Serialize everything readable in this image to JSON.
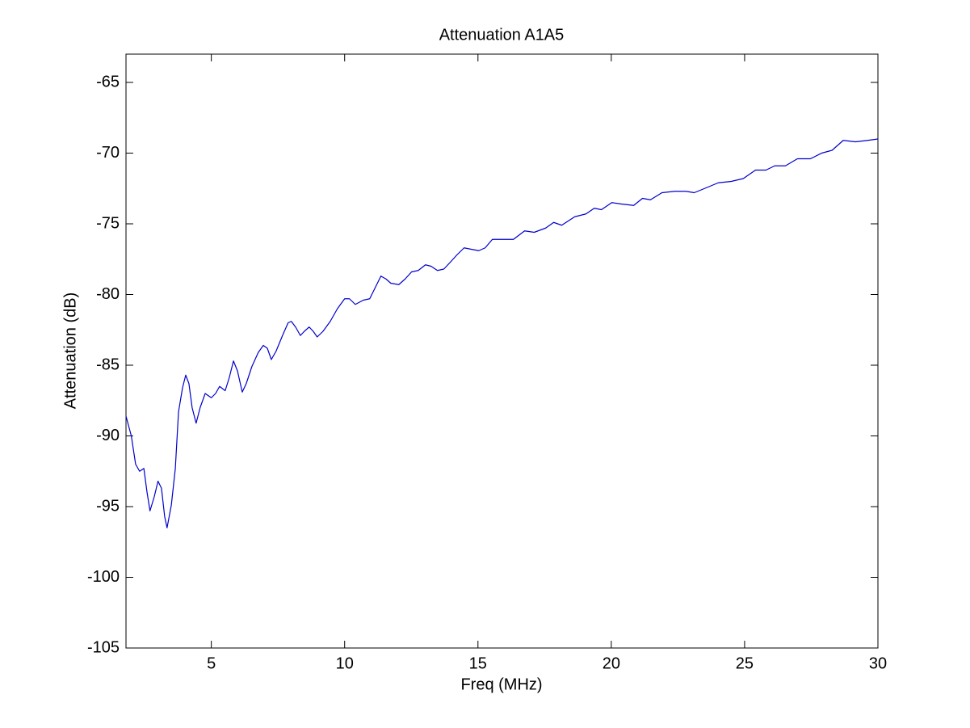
{
  "chart_data": {
    "type": "line",
    "title": "Attenuation A1A5",
    "xlabel": "Freq (MHz)",
    "ylabel": "Attenuation (dB)",
    "x": [
      1.8,
      2.0,
      2.16,
      2.31,
      2.47,
      2.59,
      2.7,
      2.86,
      3.0,
      3.13,
      3.25,
      3.34,
      3.5,
      3.65,
      3.77,
      3.92,
      4.04,
      4.16,
      4.28,
      4.43,
      4.58,
      4.77,
      5.0,
      5.16,
      5.31,
      5.52,
      5.67,
      5.83,
      5.98,
      6.16,
      6.31,
      6.52,
      6.76,
      6.95,
      7.1,
      7.25,
      7.43,
      7.67,
      7.88,
      8.0,
      8.16,
      8.34,
      8.49,
      8.67,
      8.82,
      8.97,
      9.19,
      9.46,
      9.73,
      10.0,
      10.18,
      10.4,
      10.7,
      10.94,
      11.15,
      11.36,
      11.55,
      11.73,
      12.03,
      12.27,
      12.51,
      12.76,
      13.03,
      13.24,
      13.48,
      13.72,
      13.97,
      14.21,
      14.48,
      14.75,
      15.03,
      15.27,
      15.54,
      15.84,
      16.33,
      16.75,
      17.11,
      17.54,
      17.84,
      18.14,
      18.63,
      19.05,
      19.36,
      19.63,
      20.02,
      20.38,
      20.84,
      21.17,
      21.47,
      21.9,
      22.38,
      22.8,
      23.11,
      23.5,
      24.01,
      24.5,
      24.95,
      25.41,
      25.8,
      26.13,
      26.53,
      26.98,
      27.47,
      27.89,
      28.28,
      28.7,
      29.16,
      29.61,
      30.0
    ],
    "series": [
      {
        "name": "Attenuation",
        "color": "#0000cc",
        "values": [
          -88.6,
          -90.0,
          -92.0,
          -92.5,
          -92.3,
          -94.0,
          -95.3,
          -94.3,
          -93.2,
          -93.7,
          -95.7,
          -96.5,
          -94.9,
          -92.3,
          -88.3,
          -86.6,
          -85.7,
          -86.3,
          -88.0,
          -89.1,
          -88.0,
          -87.0,
          -87.3,
          -87.0,
          -86.5,
          -86.8,
          -85.9,
          -84.7,
          -85.4,
          -86.9,
          -86.3,
          -85.1,
          -84.1,
          -83.6,
          -83.8,
          -84.6,
          -84.0,
          -82.9,
          -82.0,
          -81.9,
          -82.3,
          -82.9,
          -82.6,
          -82.3,
          -82.6,
          -83.0,
          -82.6,
          -81.9,
          -81.0,
          -80.3,
          -80.3,
          -80.7,
          -80.4,
          -80.3,
          -79.5,
          -78.7,
          -78.9,
          -79.2,
          -79.3,
          -78.9,
          -78.4,
          -78.3,
          -77.9,
          -78.0,
          -78.3,
          -78.2,
          -77.7,
          -77.2,
          -76.7,
          -76.8,
          -76.9,
          -76.7,
          -76.1,
          -76.1,
          -76.1,
          -75.5,
          -75.6,
          -75.3,
          -74.9,
          -75.1,
          -74.5,
          -74.3,
          -73.9,
          -74.0,
          -73.5,
          -73.6,
          -73.7,
          -73.2,
          -73.3,
          -72.8,
          -72.7,
          -72.7,
          -72.8,
          -72.5,
          -72.1,
          -72.0,
          -71.8,
          -71.2,
          -71.2,
          -70.9,
          -70.9,
          -70.4,
          -70.4,
          -70.0,
          -69.8,
          -69.1,
          -69.2,
          -69.1,
          -69.0
        ]
      }
    ],
    "xlim": [
      1.8,
      30
    ],
    "xticks": [
      5,
      10,
      15,
      20,
      25,
      30
    ],
    "ylim": [
      -105,
      -63
    ],
    "yticks": [
      -105,
      -100,
      -95,
      -90,
      -85,
      -80,
      -75,
      -70,
      -65
    ],
    "grid": false
  }
}
